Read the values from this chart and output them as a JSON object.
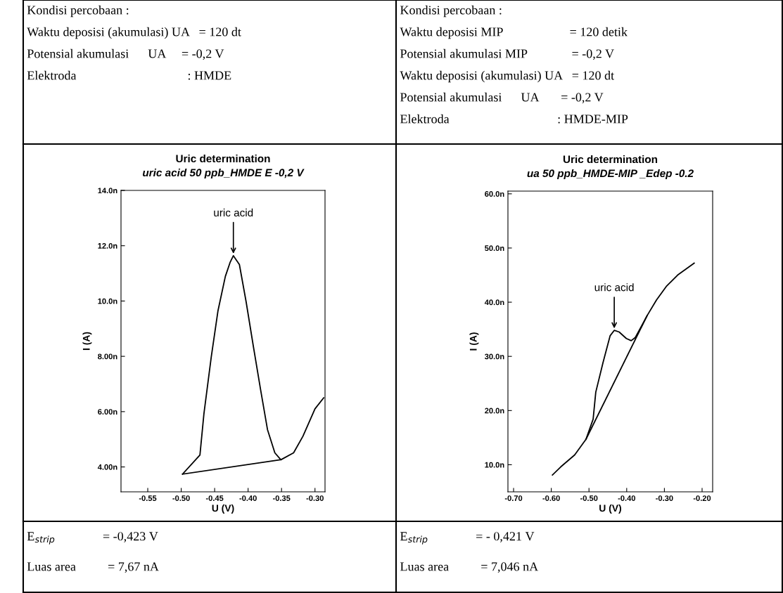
{
  "chart_data": [
    {
      "type": "other",
      "annotations": [
        "Kondisi percobaan :",
        "Waktu deposisi (akumulasi) UA   = 120 dt",
        "Potensial akumulasi      UA     = -0,2 V",
        "Elektroda                                   : HMDE"
      ]
    },
    {
      "type": "other",
      "annotations": [
        "Kondisi percobaan :",
        "Waktu deposisi MIP                     = 120 detik",
        "Potensial akumulasi MIP              = -0,2 V",
        "Waktu deposisi (akumulasi) UA   = 120 dt",
        "Potensial akumulasi      UA       = -0,2 V",
        "Elektroda                                  : HMDE-MIP"
      ]
    },
    {
      "type": "line",
      "title": "Uric determination",
      "subtitle": "uric acid 50 ppb_HMDE E -0,2 V",
      "xlabel": "U (V)",
      "ylabel": "I (A)",
      "xlim": [
        -0.59,
        -0.285
      ],
      "xticks": [
        {
          "value": -0.55,
          "label": "-0.55"
        },
        {
          "value": -0.5,
          "label": "-0.50"
        },
        {
          "value": -0.45,
          "label": "-0.45"
        },
        {
          "value": -0.4,
          "label": "-0.40"
        },
        {
          "value": -0.35,
          "label": "-0.35"
        },
        {
          "value": -0.3,
          "label": "-0.30"
        }
      ],
      "ylim": [
        3.1,
        14.0
      ],
      "yticks": [
        {
          "value": 4,
          "label": "4.00n"
        },
        {
          "value": 6,
          "label": "6.00n"
        },
        {
          "value": 8,
          "label": "8.00n"
        },
        {
          "value": 10,
          "label": "10.0n"
        },
        {
          "value": 12,
          "label": "12.0n"
        },
        {
          "value": 14,
          "label": "14.0n"
        }
      ],
      "series": [
        {
          "color": "#000000",
          "x": [
            -0.498,
            -0.472,
            -0.466,
            -0.455,
            -0.445,
            -0.434,
            -0.427,
            -0.422,
            -0.413,
            -0.403,
            -0.392,
            -0.381,
            -0.371,
            -0.36,
            -0.351,
            -0.332,
            -0.318,
            -0.3,
            -0.287
          ],
          "values": [
            3.74,
            4.43,
            5.93,
            7.99,
            9.65,
            10.89,
            11.39,
            11.64,
            11.32,
            9.98,
            8.34,
            6.75,
            5.35,
            4.51,
            4.26,
            4.51,
            5.11,
            6.1,
            6.5
          ]
        },
        {
          "color": "#000000",
          "x": [
            -0.498,
            -0.351
          ],
          "values": [
            3.74,
            4.26
          ]
        }
      ],
      "annotations": [
        {
          "text": "uric acid",
          "x": -0.422,
          "y": 11.64
        }
      ]
    },
    {
      "type": "line",
      "title": "Uric determination",
      "subtitle": "ua 50 ppb_HMDE-MIP _Edep -0.2",
      "xlabel": "U (V)",
      "ylabel": "I (A)",
      "xlim": [
        -0.715,
        -0.172
      ],
      "xticks": [
        {
          "value": -0.7,
          "label": "-0.70"
        },
        {
          "value": -0.6,
          "label": "-0.60"
        },
        {
          "value": -0.5,
          "label": "-0.50"
        },
        {
          "value": -0.4,
          "label": "-0.40"
        },
        {
          "value": -0.3,
          "label": "-0.30"
        },
        {
          "value": -0.2,
          "label": "-0.20"
        }
      ],
      "ylim": [
        5.0,
        60.5
      ],
      "yticks": [
        {
          "value": 10,
          "label": "10.0n"
        },
        {
          "value": 20,
          "label": "20.0n"
        },
        {
          "value": 30,
          "label": "30.0n"
        },
        {
          "value": 40,
          "label": "40.0n"
        },
        {
          "value": 50,
          "label": "50.0n"
        },
        {
          "value": 60,
          "label": "60.0n"
        }
      ],
      "series": [
        {
          "color": "#000000",
          "x": [
            -0.597,
            -0.575,
            -0.538,
            -0.508,
            -0.489,
            -0.482,
            -0.463,
            -0.444,
            -0.433,
            -0.42,
            -0.401,
            -0.388,
            -0.377,
            -0.359,
            -0.346,
            -0.321,
            -0.295,
            -0.265,
            -0.221
          ],
          "values": [
            8.1,
            9.6,
            11.8,
            14.7,
            18.4,
            23.4,
            28.8,
            33.8,
            34.8,
            34.5,
            33.3,
            32.9,
            33.5,
            35.8,
            37.5,
            40.4,
            42.9,
            45.0,
            47.2
          ]
        },
        {
          "color": "#000000",
          "x": [
            -0.508,
            -0.346
          ],
          "values": [
            14.7,
            37.5
          ]
        }
      ],
      "annotations": [
        {
          "text": "uric acid",
          "x": -0.433,
          "y": 34.8
        }
      ]
    },
    {
      "type": "other",
      "annotations": [
        "E$_{strip}$               = -0,423 V",
        "Luas area          = 7,67 nA"
      ]
    },
    {
      "type": "other",
      "annotations": [
        "E$_{strip}$               = - 0,421 V",
        "Luas area          = 7,046 nA"
      ]
    }
  ]
}
